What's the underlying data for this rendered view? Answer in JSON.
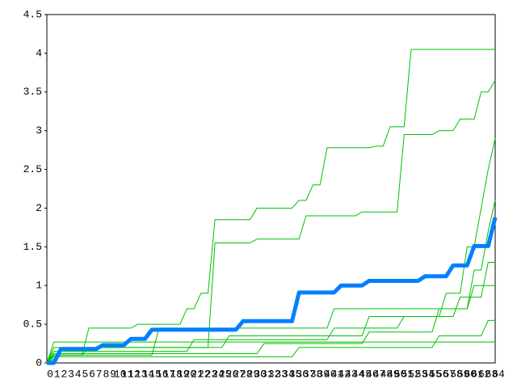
{
  "chart_data": {
    "type": "line",
    "categories": [
      "0",
      "1",
      "2",
      "3",
      "4",
      "5",
      "6",
      "7",
      "8",
      "9",
      "10",
      "11",
      "12",
      "13",
      "14",
      "15",
      "16",
      "17",
      "18",
      "19",
      "20",
      "21",
      "22",
      "23",
      "24",
      "25",
      "26",
      "27",
      "28",
      "29",
      "30",
      "31",
      "32",
      "33",
      "34",
      "35",
      "36",
      "37",
      "38",
      "39",
      "40",
      "41",
      "42",
      "43",
      "44",
      "45",
      "46",
      "47",
      "48",
      "49",
      "50",
      "51",
      "52",
      "53",
      "54",
      "55",
      "56",
      "57",
      "58",
      "59",
      "60",
      "61",
      "62",
      "63",
      "64"
    ],
    "ylim": [
      0,
      4.5
    ],
    "yticks": [
      0,
      0.5,
      1,
      1.5,
      2,
      2.5,
      3,
      3.5,
      4,
      4.5
    ],
    "series": [
      {
        "color": "#00c000",
        "width": 1,
        "values": [
          0,
          0.05,
          0.1,
          0.1,
          0.1,
          0.1,
          0.45,
          0.45,
          0.45,
          0.45,
          0.45,
          0.45,
          0.45,
          0.5,
          0.5,
          0.5,
          0.5,
          0.5,
          0.5,
          0.5,
          0.7,
          0.7,
          0.9,
          0.9,
          1.85,
          1.85,
          1.85,
          1.85,
          1.85,
          1.85,
          2,
          2,
          2,
          2,
          2,
          2,
          2.1,
          2.1,
          2.3,
          2.3,
          2.78,
          2.78,
          2.78,
          2.78,
          2.78,
          2.78,
          2.78,
          2.8,
          2.8,
          3.05,
          3.05,
          3.05,
          4.05,
          4.05,
          4.05,
          4.05,
          4.05,
          4.05,
          4.05,
          4.05,
          4.05,
          4.05,
          4.05,
          4.05,
          4.05
        ]
      },
      {
        "color": "#00c000",
        "width": 1,
        "values": [
          0,
          0.1,
          0.1,
          0.1,
          0.1,
          0.1,
          0.2,
          0.2,
          0.2,
          0.2,
          0.2,
          0.2,
          0.2,
          0.2,
          0.2,
          0.2,
          0.2,
          0.2,
          0.2,
          0.2,
          0.2,
          0.2,
          0.2,
          0.2,
          1.55,
          1.55,
          1.55,
          1.55,
          1.55,
          1.55,
          1.6,
          1.6,
          1.6,
          1.6,
          1.6,
          1.6,
          1.6,
          1.9,
          1.9,
          1.9,
          1.9,
          1.9,
          1.9,
          1.9,
          1.9,
          1.95,
          1.95,
          1.95,
          1.95,
          1.95,
          1.95,
          2.95,
          2.95,
          2.95,
          2.95,
          2.95,
          3,
          3,
          3,
          3.15,
          3.15,
          3.15,
          3.5,
          3.5,
          3.65
        ]
      },
      {
        "color": "#00c000",
        "width": 1,
        "values": [
          0,
          0.15,
          0.15,
          0.15,
          0.15,
          0.15,
          0.15,
          0.15,
          0.15,
          0.15,
          0.15,
          0.15,
          0.15,
          0.15,
          0.15,
          0.15,
          0.15,
          0.15,
          0.15,
          0.15,
          0.15,
          0.3,
          0.3,
          0.3,
          0.3,
          0.3,
          0.3,
          0.3,
          0.3,
          0.3,
          0.3,
          0.3,
          0.3,
          0.3,
          0.3,
          0.3,
          0.3,
          0.3,
          0.3,
          0.3,
          0.3,
          0.45,
          0.45,
          0.45,
          0.45,
          0.45,
          0.45,
          0.45,
          0.45,
          0.45,
          0.45,
          0.6,
          0.6,
          0.6,
          0.6,
          0.6,
          0.6,
          0.9,
          0.9,
          0.9,
          1.5,
          1.5,
          2,
          2.5,
          2.9
        ]
      },
      {
        "color": "#00c000",
        "width": 1,
        "values": [
          0,
          0.12,
          0.12,
          0.12,
          0.12,
          0.12,
          0.12,
          0.12,
          0.12,
          0.12,
          0.12,
          0.12,
          0.12,
          0.12,
          0.12,
          0.12,
          0.12,
          0.12,
          0.12,
          0.12,
          0.12,
          0.12,
          0.12,
          0.12,
          0.12,
          0.12,
          0.12,
          0.12,
          0.12,
          0.12,
          0.12,
          0.25,
          0.25,
          0.25,
          0.25,
          0.25,
          0.25,
          0.25,
          0.25,
          0.25,
          0.25,
          0.25,
          0.25,
          0.25,
          0.25,
          0.25,
          0.4,
          0.4,
          0.4,
          0.4,
          0.4,
          0.4,
          0.4,
          0.4,
          0.4,
          0.4,
          0.7,
          0.7,
          0.7,
          0.7,
          0.7,
          1.2,
          1.2,
          1.7,
          2.1
        ]
      },
      {
        "color": "#00c000",
        "width": 1,
        "values": [
          0,
          0.2,
          0.2,
          0.2,
          0.2,
          0.2,
          0.2,
          0.2,
          0.2,
          0.2,
          0.2,
          0.2,
          0.2,
          0.2,
          0.2,
          0.2,
          0.2,
          0.2,
          0.2,
          0.2,
          0.2,
          0.2,
          0.2,
          0.2,
          0.2,
          0.2,
          0.35,
          0.35,
          0.35,
          0.35,
          0.35,
          0.35,
          0.35,
          0.35,
          0.35,
          0.35,
          0.35,
          0.35,
          0.35,
          0.35,
          0.35,
          0.35,
          0.35,
          0.35,
          0.35,
          0.35,
          0.6,
          0.6,
          0.6,
          0.6,
          0.6,
          0.6,
          0.6,
          0.6,
          0.6,
          0.6,
          0.6,
          0.6,
          0.6,
          0.85,
          0.85,
          0.85,
          0.85,
          1.3,
          1.3
        ]
      },
      {
        "color": "#00c000",
        "width": 1,
        "values": [
          0,
          0.08,
          0.08,
          0.08,
          0.08,
          0.08,
          0.08,
          0.08,
          0.08,
          0.08,
          0.08,
          0.08,
          0.08,
          0.08,
          0.08,
          0.08,
          0.08,
          0.08,
          0.08,
          0.08,
          0.08,
          0.08,
          0.08,
          0.08,
          0.08,
          0.08,
          0.08,
          0.08,
          0.08,
          0.08,
          0.08,
          0.08,
          0.08,
          0.08,
          0.08,
          0.08,
          0.2,
          0.2,
          0.2,
          0.2,
          0.2,
          0.2,
          0.2,
          0.2,
          0.2,
          0.2,
          0.2,
          0.2,
          0.2,
          0.2,
          0.2,
          0.2,
          0.2,
          0.2,
          0.2,
          0.2,
          0.35,
          0.35,
          0.35,
          0.35,
          0.35,
          0.35,
          0.35,
          0.55,
          0.55
        ]
      },
      {
        "color": "#00c000",
        "width": 1,
        "values": [
          0,
          0.1,
          0.1,
          0.1,
          0.1,
          0.1,
          0.1,
          0.1,
          0.1,
          0.1,
          0.1,
          0.1,
          0.1,
          0.1,
          0.1,
          0.1,
          0.45,
          0.45,
          0.45,
          0.45,
          0.45,
          0.45,
          0.45,
          0.45,
          0.45,
          0.45,
          0.45,
          0.45,
          0.45,
          0.45,
          0.45,
          0.45,
          0.45,
          0.45,
          0.45,
          0.45,
          0.45,
          0.45,
          0.45,
          0.45,
          0.45,
          0.7,
          0.7,
          0.7,
          0.7,
          0.7,
          0.7,
          0.7,
          0.7,
          0.7,
          0.7,
          0.7,
          0.7,
          0.7,
          0.7,
          0.7,
          0.7,
          0.7,
          0.7,
          0.7,
          0.7,
          1,
          1,
          1,
          1
        ]
      },
      {
        "color": "#00c000",
        "width": 1,
        "values": [
          0,
          0.27,
          0.27,
          0.27,
          0.27,
          0.27,
          0.27,
          0.27,
          0.27,
          0.27,
          0.27,
          0.27,
          0.27,
          0.27,
          0.27,
          0.27,
          0.27,
          0.27,
          0.27,
          0.27,
          0.27,
          0.27,
          0.27,
          0.27,
          0.27,
          0.27,
          0.27,
          0.27,
          0.27,
          0.27,
          0.27,
          0.27,
          0.27,
          0.27,
          0.27,
          0.27,
          0.27,
          0.27,
          0.27,
          0.27,
          0.27,
          0.27,
          0.27,
          0.27,
          0.27,
          0.27,
          0.27,
          0.27,
          0.27,
          0.27,
          0.27,
          0.27,
          0.27,
          0.27,
          0.27,
          0.27,
          0.27,
          0.27,
          0.27,
          0.27,
          0.27,
          0.27,
          0.27,
          0.27,
          0.27
        ]
      },
      {
        "color": "#0080ff",
        "width": 5,
        "values": [
          0,
          0,
          0.18,
          0.18,
          0.18,
          0.18,
          0.18,
          0.18,
          0.23,
          0.23,
          0.23,
          0.23,
          0.31,
          0.31,
          0.31,
          0.43,
          0.43,
          0.43,
          0.43,
          0.43,
          0.43,
          0.43,
          0.43,
          0.43,
          0.43,
          0.43,
          0.43,
          0.43,
          0.54,
          0.54,
          0.54,
          0.54,
          0.54,
          0.54,
          0.54,
          0.54,
          0.91,
          0.91,
          0.91,
          0.91,
          0.91,
          0.91,
          1,
          1,
          1,
          1,
          1.06,
          1.06,
          1.06,
          1.06,
          1.06,
          1.06,
          1.06,
          1.06,
          1.12,
          1.12,
          1.12,
          1.12,
          1.26,
          1.26,
          1.26,
          1.51,
          1.51,
          1.51,
          1.88
        ]
      }
    ]
  }
}
